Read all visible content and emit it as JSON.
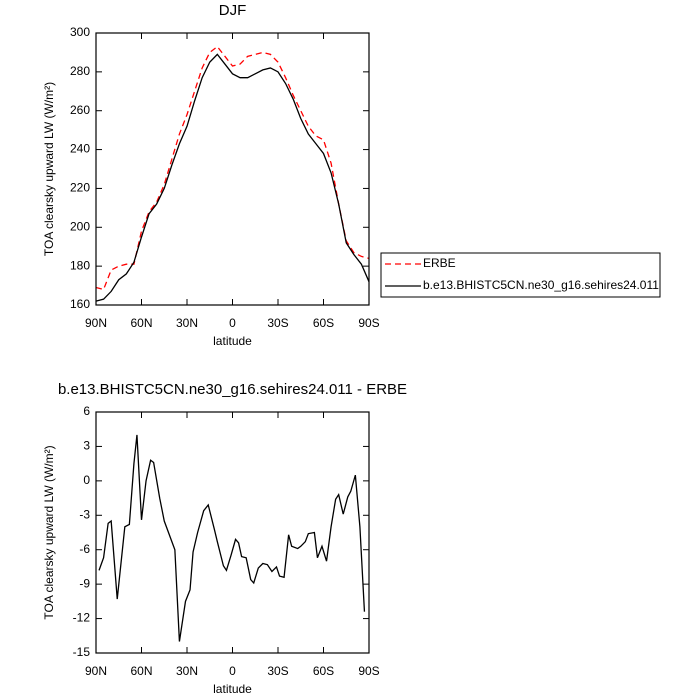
{
  "chart_data": [
    {
      "type": "line",
      "title": "DJF",
      "xlabel": "latitude",
      "ylabel": "TOA clearsky upward LW (W/m²)",
      "x": [
        90,
        85,
        80,
        75,
        70,
        65,
        60,
        55,
        50,
        45,
        40,
        35,
        30,
        25,
        20,
        15,
        10,
        5,
        0,
        -5,
        -10,
        -15,
        -20,
        -25,
        -30,
        -35,
        -40,
        -45,
        -50,
        -55,
        -60,
        -65,
        -70,
        -75,
        -80,
        -85,
        -90
      ],
      "series": [
        {
          "name": "ERBE",
          "color": "#ff0000",
          "linestyle": "dashed",
          "values": [
            169,
            168,
            178,
            180,
            181,
            181,
            198,
            208,
            213,
            222,
            235,
            248,
            258,
            270,
            282,
            290,
            293,
            288,
            283,
            284,
            288,
            289,
            290,
            289,
            285,
            277,
            268,
            260,
            252,
            247,
            245,
            233,
            212,
            193,
            187,
            185,
            184
          ]
        },
        {
          "name": "b.e13.BHISTC5CN.ne30_g16.sehires24.011",
          "color": "#000000",
          "linestyle": "solid",
          "values": [
            162,
            163,
            167,
            173,
            176,
            182,
            195,
            207,
            212,
            220,
            232,
            243,
            252,
            265,
            277,
            285,
            289,
            284,
            279,
            277,
            277,
            279,
            281,
            282,
            280,
            274,
            266,
            256,
            248,
            243,
            238,
            228,
            212,
            192,
            186,
            181,
            172
          ]
        }
      ],
      "xlim": [
        90,
        -90
      ],
      "xticks": [
        {
          "value": 90,
          "label": "90N"
        },
        {
          "value": 60,
          "label": "60N"
        },
        {
          "value": 30,
          "label": "30N"
        },
        0,
        {
          "value": -30,
          "label": "30S"
        },
        {
          "value": -60,
          "label": "60S"
        },
        {
          "value": -90,
          "label": "90S"
        }
      ],
      "ylim": [
        160,
        300
      ],
      "yticks": [
        160,
        180,
        200,
        220,
        240,
        260,
        280,
        300
      ],
      "legend": "right"
    },
    {
      "type": "line",
      "title": "b.e13.BHISTC5CN.ne30_g16.sehires24.011 - ERBE",
      "xlabel": "latitude",
      "ylabel": "TOA clearsky upward LW (W/m²)",
      "x": [
        88,
        85,
        82,
        80,
        76,
        71,
        68,
        65,
        63,
        60,
        57,
        54,
        52,
        48,
        45,
        38,
        35,
        31,
        28,
        26,
        23,
        19,
        16,
        12,
        10,
        6,
        4,
        1,
        -2,
        -4,
        -6,
        -9,
        -12,
        -14,
        -17,
        -20,
        -23,
        -26,
        -29,
        -31,
        -34,
        -37,
        -39,
        -43,
        -45,
        -48,
        -50,
        -54,
        -56,
        -59,
        -62,
        -65,
        -68,
        -70,
        -73,
        -76,
        -78,
        -81,
        -84,
        -87
      ],
      "series": [
        {
          "color": "#000000",
          "linestyle": "solid",
          "values": [
            -7.8,
            -6.7,
            -3.7,
            -3.5,
            -10.3,
            -4,
            -3.8,
            1.5,
            4,
            -3.4,
            0,
            1.8,
            1.6,
            -1.5,
            -3.5,
            -6,
            -14,
            -10.5,
            -9.5,
            -6.2,
            -4.5,
            -2.6,
            -2.1,
            -4.2,
            -5.3,
            -7.4,
            -7.8,
            -6.5,
            -5.1,
            -5.4,
            -6.6,
            -6.7,
            -8.6,
            -8.9,
            -7.6,
            -7.2,
            -7.3,
            -7.9,
            -7.5,
            -8.3,
            -8.4,
            -4.7,
            -5.7,
            -5.9,
            -5.7,
            -5.3,
            -4.6,
            -4.5,
            -6.7,
            -5.7,
            -7,
            -4,
            -1.6,
            -1.2,
            -2.9,
            -1.4,
            -0.9,
            0.5,
            -4,
            -11.4
          ]
        }
      ],
      "xlim": [
        90,
        -90
      ],
      "xticks": [
        {
          "value": 90,
          "label": "90N"
        },
        {
          "value": 60,
          "label": "60N"
        },
        {
          "value": 30,
          "label": "30N"
        },
        0,
        {
          "value": -30,
          "label": "30S"
        },
        {
          "value": -60,
          "label": "60S"
        },
        {
          "value": -90,
          "label": "90S"
        }
      ],
      "ylim": [
        -15,
        6
      ],
      "yticks": [
        -15,
        -12,
        -9,
        -6,
        -3,
        0,
        3,
        6
      ]
    }
  ]
}
